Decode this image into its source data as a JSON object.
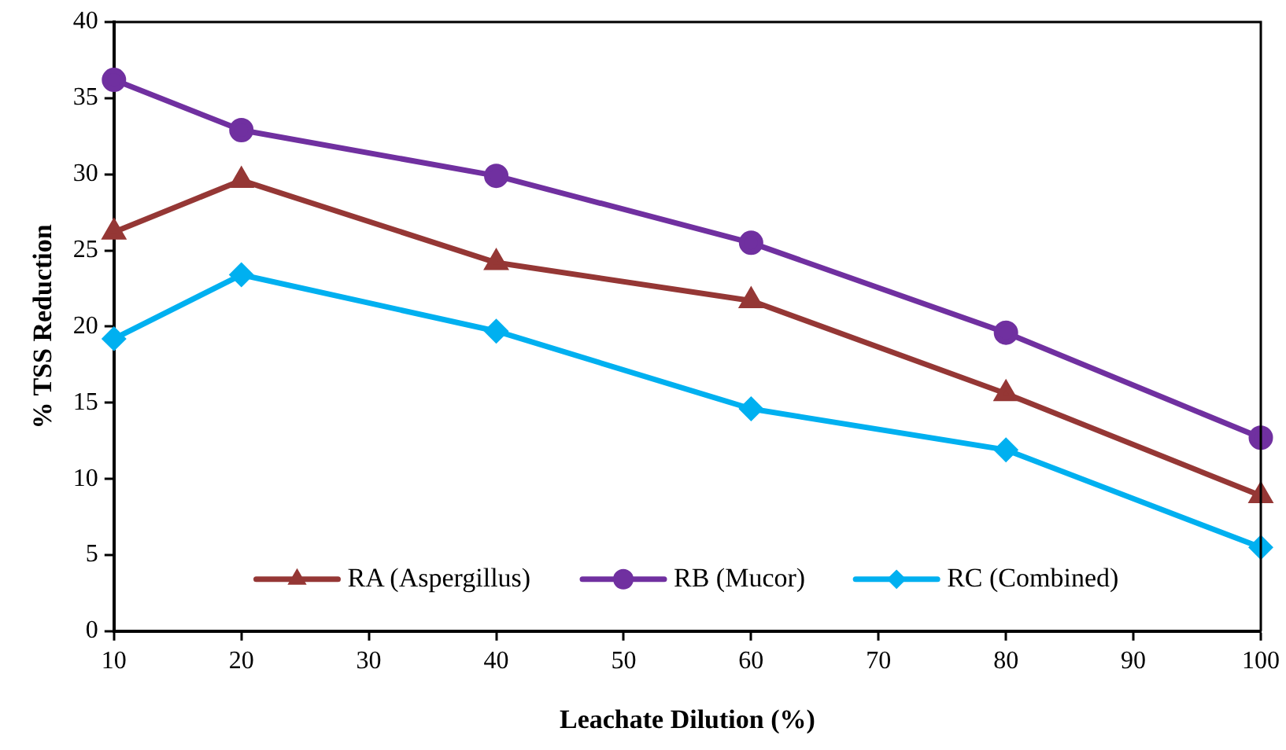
{
  "chart_data": {
    "type": "line",
    "xlabel": "Leachate Dilution (%)",
    "ylabel": "% TSS Reduction",
    "x": [
      10,
      20,
      40,
      60,
      80,
      100
    ],
    "series": [
      {
        "name": "RA (Aspergillus)",
        "color": "#953735",
        "marker": "triangle",
        "values": [
          26.2,
          29.6,
          24.2,
          21.7,
          15.6,
          8.9
        ]
      },
      {
        "name": "RB (Mucor)",
        "color": "#7030a0",
        "marker": "circle",
        "values": [
          36.2,
          32.9,
          29.9,
          25.5,
          19.6,
          12.7
        ]
      },
      {
        "name": "RC (Combined)",
        "color": "#00b0f0",
        "marker": "diamond",
        "values": [
          19.2,
          23.4,
          19.7,
          14.6,
          11.9,
          5.5
        ]
      }
    ],
    "xlim": [
      10,
      100
    ],
    "xticks": [
      10,
      20,
      30,
      40,
      50,
      60,
      70,
      80,
      90,
      100
    ],
    "ylim": [
      0,
      40
    ],
    "yticks": [
      0,
      5,
      10,
      15,
      20,
      25,
      30,
      35,
      40
    ],
    "grid": false,
    "legend": "bottom"
  }
}
